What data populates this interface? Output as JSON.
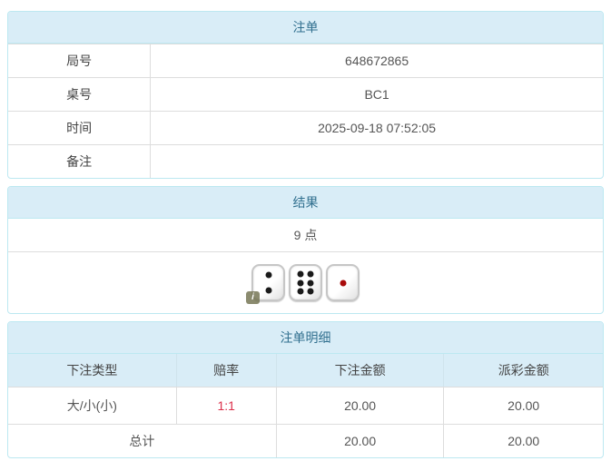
{
  "panels": {
    "order": {
      "title": "注单",
      "rows": [
        {
          "label": "局号",
          "value": "648672865"
        },
        {
          "label": "桌号",
          "value": "BC1"
        },
        {
          "label": "时间",
          "value": "2025-09-18 07:52:05"
        },
        {
          "label": "备注",
          "value": ""
        }
      ]
    },
    "result": {
      "title": "结果",
      "points": "9 点",
      "dice": [
        {
          "value": 2,
          "pip_color": "#1a1a1a",
          "info_badge": true
        },
        {
          "value": 6,
          "pip_color": "#1a1a1a",
          "info_badge": false
        },
        {
          "value": 1,
          "pip_color": "#a80b0b",
          "info_badge": false
        }
      ],
      "info_badge_glyph": "i"
    },
    "detail": {
      "title": "注单明细",
      "columns": [
        "下注类型",
        "赔率",
        "下注金额",
        "派彩金额"
      ],
      "rows": [
        {
          "bet_type": "大/小(小)",
          "odds": "1:1",
          "bet_amount": "20.00",
          "payout_amount": "20.00"
        }
      ],
      "total": {
        "label": "总计",
        "bet_amount": "20.00",
        "payout_amount": "20.00"
      }
    }
  },
  "colors": {
    "heading_bg": "#d9edf7",
    "heading_text": "#31708f",
    "panel_border": "#bce8f1",
    "row_divider": "#dddddd",
    "body_text": "#555555",
    "odds_red": "#dc2f4a",
    "pip_black": "#1a1a1a",
    "pip_red": "#a80b0b"
  }
}
